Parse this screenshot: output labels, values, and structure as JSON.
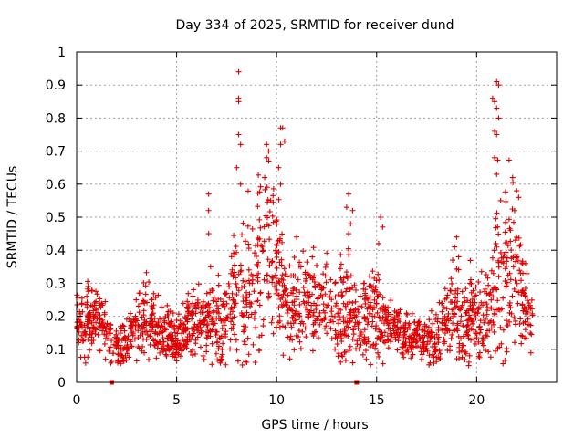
{
  "chart_data": {
    "type": "scatter",
    "title": "Day 334 of 2025, SRMTID for receiver dund",
    "xlabel": "GPS time / hours",
    "ylabel": "SRMTID / TECUs",
    "xlim": [
      0,
      24
    ],
    "ylim": [
      0,
      1
    ],
    "grid": true,
    "x_ticks": [
      0,
      5,
      10,
      15,
      20
    ],
    "x_tick_labels": [
      "0",
      "5",
      "10",
      "15",
      "20"
    ],
    "y_ticks": [
      0,
      0.1,
      0.2,
      0.3,
      0.4,
      0.5,
      0.6,
      0.7,
      0.8,
      0.9,
      1
    ],
    "y_tick_labels": [
      "0",
      "0.1",
      "0.2",
      "0.3",
      "0.4",
      "0.5",
      "0.6",
      "0.7",
      "0.8",
      "0.9",
      "1"
    ],
    "marker": "+",
    "color": "#e00000",
    "zero_markers_x": [
      1.75,
      14.0
    ],
    "envelope_hours": [
      0,
      0.5,
      1,
      1.5,
      2,
      2.5,
      3,
      3.5,
      4,
      4.5,
      5,
      5.5,
      6,
      6.5,
      7,
      7.5,
      8,
      8.5,
      9,
      9.5,
      10,
      10.5,
      11,
      11.5,
      12,
      12.5,
      13,
      13.5,
      14,
      14.5,
      15,
      15.5,
      16,
      16.5,
      17,
      17.5,
      18,
      18.5,
      19,
      19.5,
      20,
      20.5,
      21,
      21.5,
      22,
      22.5,
      22.8
    ],
    "envelope_median": [
      0.18,
      0.17,
      0.2,
      0.15,
      0.1,
      0.11,
      0.17,
      0.2,
      0.16,
      0.15,
      0.12,
      0.17,
      0.19,
      0.17,
      0.17,
      0.18,
      0.27,
      0.25,
      0.32,
      0.42,
      0.36,
      0.22,
      0.22,
      0.25,
      0.25,
      0.24,
      0.2,
      0.22,
      0.18,
      0.2,
      0.2,
      0.17,
      0.15,
      0.15,
      0.14,
      0.12,
      0.15,
      0.2,
      0.22,
      0.2,
      0.2,
      0.2,
      0.32,
      0.35,
      0.33,
      0.2,
      0.18
    ],
    "envelope_spread": [
      0.08,
      0.1,
      0.1,
      0.08,
      0.05,
      0.06,
      0.09,
      0.1,
      0.08,
      0.07,
      0.06,
      0.08,
      0.09,
      0.1,
      0.1,
      0.12,
      0.15,
      0.25,
      0.25,
      0.2,
      0.2,
      0.12,
      0.12,
      0.13,
      0.13,
      0.12,
      0.12,
      0.15,
      0.1,
      0.12,
      0.14,
      0.08,
      0.07,
      0.06,
      0.06,
      0.05,
      0.08,
      0.12,
      0.15,
      0.12,
      0.1,
      0.12,
      0.25,
      0.25,
      0.2,
      0.1,
      0.06
    ],
    "peak_points": [
      [
        8.1,
        0.94
      ],
      [
        8.1,
        0.86
      ],
      [
        8.1,
        0.85
      ],
      [
        8.1,
        0.75
      ],
      [
        8.2,
        0.72
      ],
      [
        8.0,
        0.65
      ],
      [
        8.2,
        0.6
      ],
      [
        6.6,
        0.57
      ],
      [
        6.6,
        0.52
      ],
      [
        6.6,
        0.45
      ],
      [
        6.7,
        0.35
      ],
      [
        9.5,
        0.72
      ],
      [
        9.6,
        0.7
      ],
      [
        9.5,
        0.68
      ],
      [
        9.6,
        0.67
      ],
      [
        9.4,
        0.62
      ],
      [
        9.7,
        0.55
      ],
      [
        10.3,
        0.77
      ],
      [
        10.2,
        0.77
      ],
      [
        10.4,
        0.73
      ],
      [
        10.2,
        0.72
      ],
      [
        10.1,
        0.65
      ],
      [
        10.2,
        0.6
      ],
      [
        11.0,
        0.44
      ],
      [
        13.6,
        0.57
      ],
      [
        13.5,
        0.53
      ],
      [
        13.7,
        0.48
      ],
      [
        13.6,
        0.45
      ],
      [
        13.8,
        0.52
      ],
      [
        15.2,
        0.5
      ],
      [
        15.3,
        0.47
      ],
      [
        15.1,
        0.42
      ],
      [
        20.8,
        0.86
      ],
      [
        20.9,
        0.85
      ],
      [
        21.0,
        0.91
      ],
      [
        21.1,
        0.9
      ],
      [
        21.0,
        0.83
      ],
      [
        21.1,
        0.8
      ],
      [
        20.9,
        0.76
      ],
      [
        21.0,
        0.75
      ],
      [
        20.9,
        0.68
      ],
      [
        21.0,
        0.63
      ],
      [
        21.2,
        0.55
      ],
      [
        21.8,
        0.62
      ],
      [
        22.0,
        0.58
      ],
      [
        22.1,
        0.56
      ],
      [
        21.9,
        0.52
      ],
      [
        19.0,
        0.44
      ],
      [
        18.9,
        0.41
      ],
      [
        19.1,
        0.38
      ],
      [
        18.8,
        0.37
      ]
    ]
  }
}
